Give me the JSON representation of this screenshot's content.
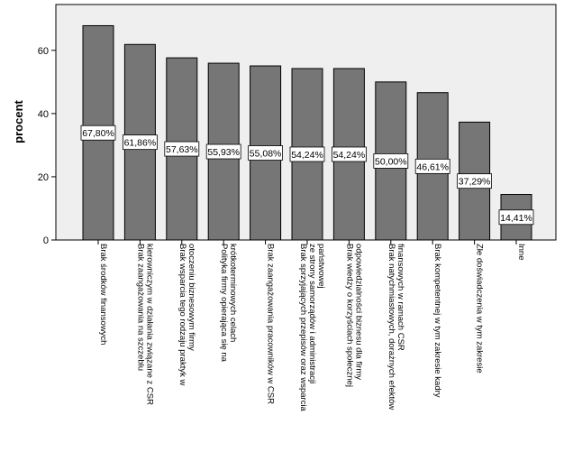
{
  "chart_data": {
    "type": "bar",
    "title": "",
    "xlabel": "",
    "ylabel": "procent",
    "ylim": [
      0,
      74.5
    ],
    "yticks": [
      0,
      20,
      40,
      60
    ],
    "grid": false,
    "colors": {
      "plot_background": "#efefef",
      "bar_fill": "#767676",
      "bar_stroke": "#000000",
      "label_box": "#ffffff"
    },
    "categories": [
      [
        "Brak środków finansowych"
      ],
      [
        "Brak zaangażowania na szczeblu",
        "kierowniczym w działania związane z CSR"
      ],
      [
        "Brak wsparcia tego rodzaju praktyk w",
        "otoczeniu biznesowym firmy"
      ],
      [
        "Polityka firmy opierająca się na",
        "krótkoterminowych celach"
      ],
      [
        "Brak zaangażowania pracowników w CSR"
      ],
      [
        "Brak sprzyjających przepisów oraz wsparcia",
        "ze strony samorządów i administracji",
        "państwowej"
      ],
      [
        "Brak wiedzy o korzyściach społecznej",
        "odpowiedzialności biznesu dla firmy"
      ],
      [
        "Brak natychmiastowych, dorażnych efektów",
        "finansowych w ramach CSR"
      ],
      [
        "Brak kompetentnej w tym zakresie kadry"
      ],
      [
        "Złe doświadczenia w tym zakresie"
      ],
      [
        "Inne"
      ]
    ],
    "values": [
      67.8,
      61.86,
      57.63,
      55.93,
      55.08,
      54.24,
      54.24,
      50.0,
      46.61,
      37.29,
      14.41
    ],
    "value_labels": [
      "67,80%",
      "61,86%",
      "57,63%",
      "55,93%",
      "55,08%",
      "54,24%",
      "54,24%",
      "50,00%",
      "46,61%",
      "37,29%",
      "14,41%"
    ]
  }
}
